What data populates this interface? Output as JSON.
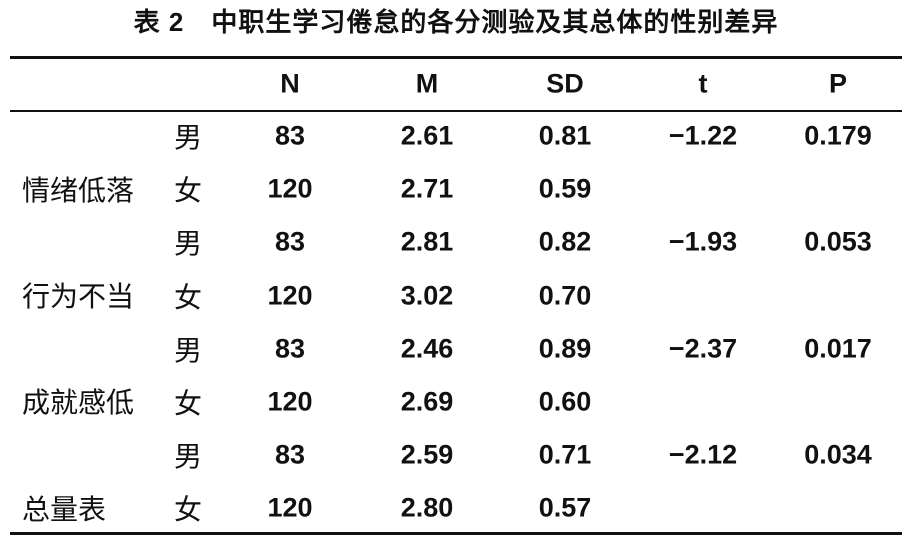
{
  "title": "表 2　中职生学习倦怠的各分测验及其总体的性别差异",
  "table": {
    "columns": [
      "N",
      "M",
      "SD",
      "t",
      "P"
    ],
    "groups": [
      {
        "label": "情绪低落",
        "rows": [
          {
            "gender": "男",
            "N": "83",
            "M": "2.61",
            "SD": "0.81",
            "t": "−1.22",
            "P": "0.179"
          },
          {
            "gender": "女",
            "N": "120",
            "M": "2.71",
            "SD": "0.59"
          }
        ]
      },
      {
        "label": "行为不当",
        "rows": [
          {
            "gender": "男",
            "N": "83",
            "M": "2.81",
            "SD": "0.82",
            "t": "−1.93",
            "P": "0.053"
          },
          {
            "gender": "女",
            "N": "120",
            "M": "3.02",
            "SD": "0.70"
          }
        ]
      },
      {
        "label": "成就感低",
        "rows": [
          {
            "gender": "男",
            "N": "83",
            "M": "2.46",
            "SD": "0.89",
            "t": "−2.37",
            "P": "0.017"
          },
          {
            "gender": "女",
            "N": "120",
            "M": "2.69",
            "SD": "0.60"
          }
        ]
      },
      {
        "label": "总量表",
        "rows": [
          {
            "gender": "男",
            "N": "83",
            "M": "2.59",
            "SD": "0.71",
            "t": "−2.12",
            "P": "0.034"
          },
          {
            "gender": "女",
            "N": "120",
            "M": "2.80",
            "SD": "0.57"
          }
        ]
      }
    ]
  }
}
